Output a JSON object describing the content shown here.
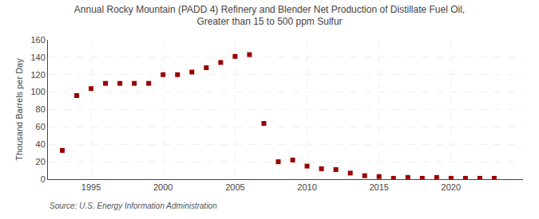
{
  "chart_data": {
    "type": "scatter",
    "title": "Annual Rocky Mountain (PADD 4) Refinery and Blender Net Production of Distillate Fuel Oil,\nGreater than 15 to 500 ppm Sulfur",
    "ylabel": "Thousand Barrels per Day",
    "annotations": [
      "Source: U.S. Energy Information Administration"
    ],
    "x": [
      1993,
      1994,
      1995,
      1996,
      1997,
      1998,
      1999,
      2000,
      2001,
      2002,
      2003,
      2004,
      2005,
      2006,
      2007,
      2008,
      2009,
      2010,
      2011,
      2012,
      2013,
      2014,
      2015,
      2016,
      2017,
      2018,
      2019,
      2020,
      2021,
      2022,
      2023
    ],
    "values": [
      33,
      96,
      104,
      110,
      110,
      110,
      110,
      120,
      120,
      123,
      128,
      134,
      141,
      143,
      64,
      20,
      22,
      15,
      12,
      11,
      7,
      4,
      3,
      1,
      2,
      1,
      2,
      1,
      1,
      1,
      1
    ],
    "color": "#990000",
    "marker": "square",
    "xlim": [
      1992,
      2025
    ],
    "xticks": [
      1995,
      2000,
      2005,
      2010,
      2015,
      2020
    ],
    "ylim": [
      0,
      160
    ],
    "yticks": [
      0,
      20,
      40,
      60,
      80,
      100,
      120,
      140,
      160
    ],
    "grid": true
  }
}
